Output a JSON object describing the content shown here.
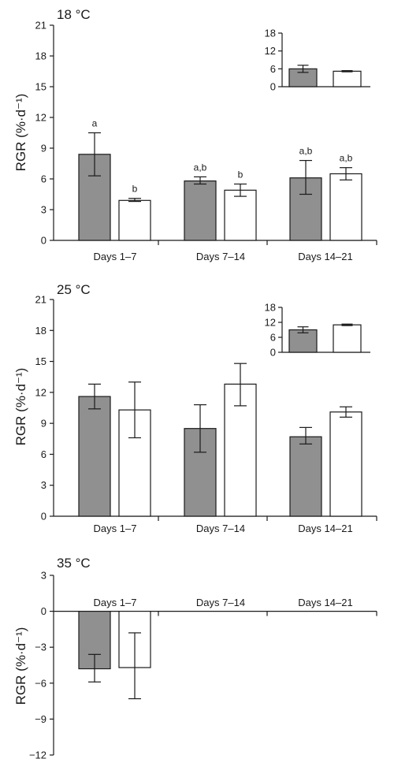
{
  "styles": {
    "treated_fill": "#909090",
    "control_fill": "#ffffff",
    "stroke": "#1a1a1a"
  },
  "chart_data": [
    {
      "type": "bar",
      "title": "18 °C",
      "ylabel": "RGR (%·d⁻¹)",
      "ylim": [
        0,
        21
      ],
      "yticks": [
        0,
        3,
        6,
        9,
        12,
        15,
        18,
        21
      ],
      "categories": [
        "Days 1–7",
        "Days 7–14",
        "Days 14–21"
      ],
      "series": [
        {
          "style": "gray",
          "values": [
            8.4,
            5.8,
            6.1
          ],
          "err_low": [
            6.3,
            5.5,
            4.5
          ],
          "err_high": [
            10.5,
            6.2,
            7.8
          ],
          "labels": [
            "a",
            "a,b",
            "a,b"
          ]
        },
        {
          "style": "white",
          "values": [
            3.9,
            4.9,
            6.5
          ],
          "err_low": [
            3.8,
            4.3,
            5.9
          ],
          "err_high": [
            4.1,
            5.5,
            7.1
          ],
          "labels": [
            "b",
            "b",
            "a,b"
          ]
        }
      ],
      "inset": {
        "ylim": [
          0,
          18
        ],
        "yticks": [
          0,
          6,
          12,
          18
        ],
        "series": [
          {
            "style": "gray",
            "value": 6.0,
            "err_low": 4.8,
            "err_high": 7.2
          },
          {
            "style": "white",
            "value": 5.2,
            "err_low": 5.0,
            "err_high": 5.4
          }
        ]
      }
    },
    {
      "type": "bar",
      "title": "25 °C",
      "ylabel": "RGR (%·d⁻¹)",
      "ylim": [
        0,
        21
      ],
      "yticks": [
        0,
        3,
        6,
        9,
        12,
        15,
        18,
        21
      ],
      "categories": [
        "Days 1–7",
        "Days 7–14",
        "Days 14–21"
      ],
      "series": [
        {
          "style": "gray",
          "values": [
            11.6,
            8.5,
            7.7
          ],
          "err_low": [
            10.4,
            6.2,
            7.0
          ],
          "err_high": [
            12.8,
            10.8,
            8.6
          ]
        },
        {
          "style": "white",
          "values": [
            10.3,
            12.8,
            10.1
          ],
          "err_low": [
            7.6,
            10.7,
            9.6
          ],
          "err_high": [
            13.0,
            14.8,
            10.6
          ]
        }
      ],
      "inset": {
        "ylim": [
          0,
          18
        ],
        "yticks": [
          0,
          6,
          12,
          18
        ],
        "series": [
          {
            "style": "gray",
            "value": 9.0,
            "err_low": 7.8,
            "err_high": 10.2
          },
          {
            "style": "white",
            "value": 11.0,
            "err_low": 10.7,
            "err_high": 11.3
          }
        ]
      }
    },
    {
      "type": "bar",
      "title": "35 °C",
      "ylabel": "RGR (%·d⁻¹)",
      "ylim": [
        -12,
        3
      ],
      "yticks": [
        -12,
        -9,
        -6,
        -3,
        0,
        3
      ],
      "categories": [
        "Days 1–7",
        "Days 7–14",
        "Days 14–21"
      ],
      "series": [
        {
          "style": "gray",
          "values": [
            -4.8,
            null,
            null
          ],
          "err_low": [
            -5.9,
            null,
            null
          ],
          "err_high": [
            -3.6,
            null,
            null
          ]
        },
        {
          "style": "white",
          "values": [
            -4.7,
            null,
            null
          ],
          "err_low": [
            -7.3,
            null,
            null
          ],
          "err_high": [
            -1.8,
            null,
            null
          ]
        }
      ]
    }
  ]
}
